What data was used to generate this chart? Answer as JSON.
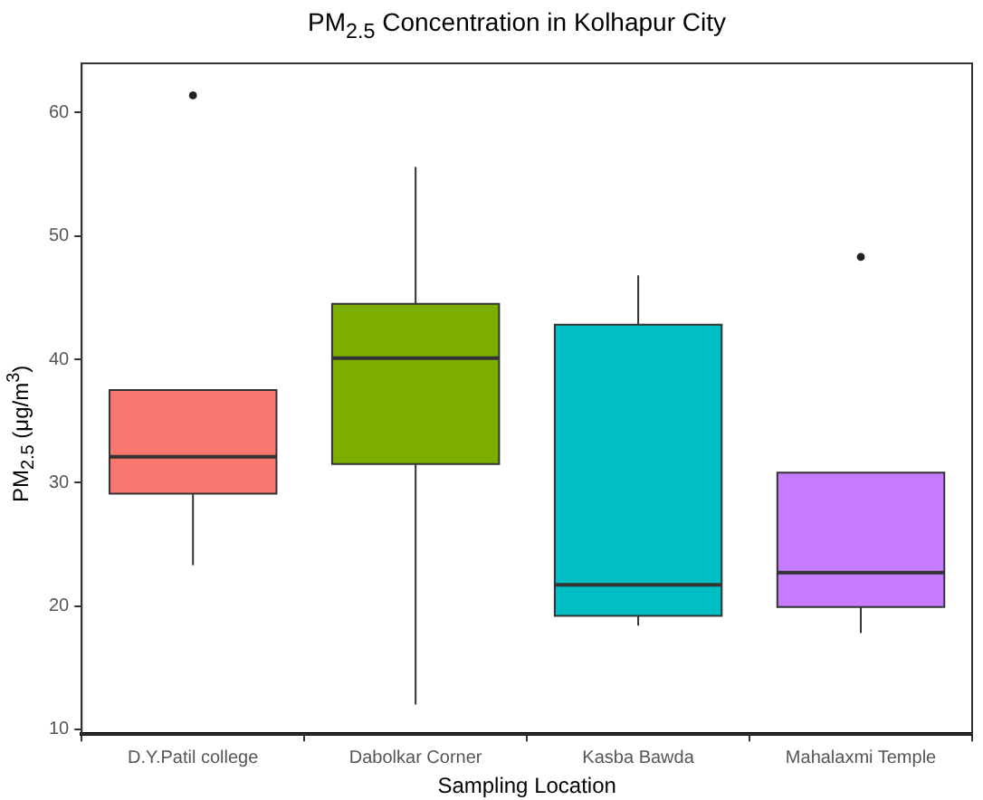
{
  "chart_data": {
    "type": "box",
    "title": "PM$_{2.5}$ Concentration in Kolhapur City",
    "xlabel": "Sampling Location",
    "ylabel": "PM$_{2.5}$ (μg/m$^{3}$)",
    "categories": [
      "D.Y.Patil college",
      "Dabolkar Corner",
      "Kasba Bawda",
      "Mahalaxmi Temple"
    ],
    "colors": [
      "#f8766d",
      "#7cae00",
      "#00bfc4",
      "#c77cff"
    ],
    "boxes": [
      {
        "low": 23.3,
        "q1": 29.1,
        "median": 32.1,
        "q3": 37.5,
        "high": 37.5,
        "outliers": [
          61.4
        ]
      },
      {
        "low": 12.0,
        "q1": 31.5,
        "median": 40.1,
        "q3": 44.5,
        "high": 55.6
      },
      {
        "low": 18.4,
        "q1": 19.2,
        "median": 21.7,
        "q3": 42.8,
        "high": 46.8
      },
      {
        "low": 17.8,
        "q1": 19.9,
        "median": 22.7,
        "q3": 30.8,
        "high": 30.8,
        "outliers": [
          48.3
        ]
      }
    ],
    "ylim": [
      9.6,
      64
    ],
    "yticks": [
      10,
      20,
      30,
      40,
      50,
      60
    ],
    "legend": false
  }
}
